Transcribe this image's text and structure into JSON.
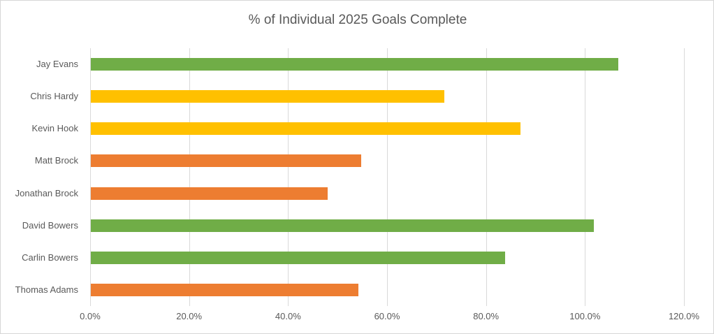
{
  "chart_data": {
    "type": "bar",
    "orientation": "horizontal",
    "title": "% of Individual 2025 Goals Complete",
    "categories": [
      "Jay Evans",
      "Chris Hardy",
      "Kevin Hook",
      "Matt Brock",
      "Jonathan Brock",
      "David Bowers",
      "Carlin Bowers",
      "Thomas Adams"
    ],
    "values": [
      106.6,
      71.5,
      86.8,
      54.6,
      47.8,
      101.6,
      83.7,
      54.1
    ],
    "bar_colors": [
      "#70AD47",
      "#FFC000",
      "#FFC000",
      "#ED7D31",
      "#ED7D31",
      "#70AD47",
      "#70AD47",
      "#ED7D31"
    ],
    "xlabel": "",
    "ylabel": "",
    "xlim": [
      0,
      120
    ],
    "xtick_labels": [
      "0.0%",
      "20.0%",
      "40.0%",
      "60.0%",
      "80.0%",
      "100.0%",
      "120.0%"
    ],
    "xtick_values": [
      0,
      20,
      40,
      60,
      80,
      100,
      120
    ],
    "grid": true,
    "legend": false,
    "value_unit": "%"
  },
  "style": {
    "grid_color": "#d9d9d9",
    "text_color": "#595959",
    "border_color": "#d7d7d7",
    "background_color": "#ffffff",
    "color_green": "#70AD47",
    "color_gold": "#FFC000",
    "color_orange": "#ED7D31"
  }
}
